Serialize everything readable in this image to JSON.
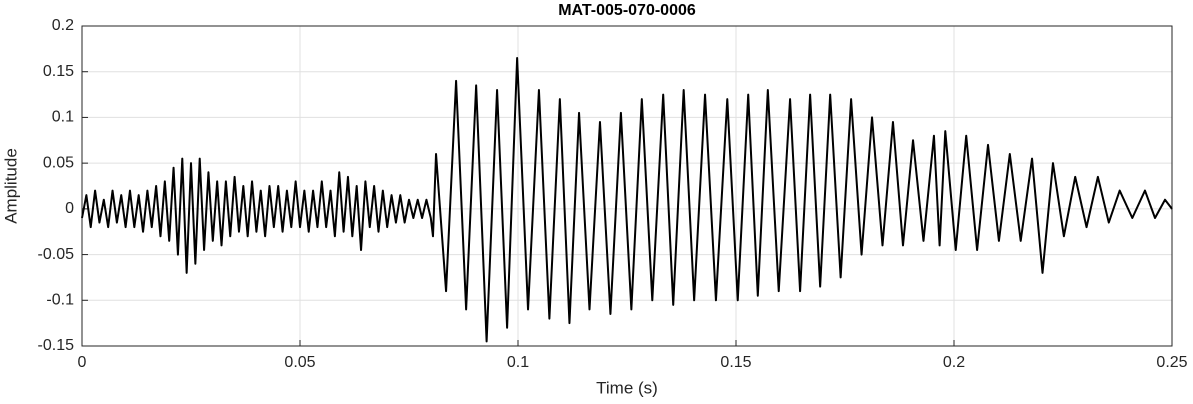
{
  "chart_data": {
    "type": "line",
    "title": "MAT-005-070-0006",
    "x_label": "Time (s)",
    "y_label": "Amplitude",
    "x": [
      0,
      0.001,
      0.002,
      0.003,
      0.004,
      0.005,
      0.006,
      0.007,
      0.008,
      0.009,
      0.01,
      0.011,
      0.012,
      0.013,
      0.014,
      0.015,
      0.016,
      0.017,
      0.018,
      0.019,
      0.02,
      0.021,
      0.022,
      0.023,
      0.024,
      0.025,
      0.026,
      0.027,
      0.028,
      0.029,
      0.03,
      0.031,
      0.032,
      0.033,
      0.034,
      0.035,
      0.036,
      0.037,
      0.038,
      0.039,
      0.04,
      0.041,
      0.042,
      0.043,
      0.044,
      0.045,
      0.046,
      0.047,
      0.048,
      0.049,
      0.05,
      0.051,
      0.052,
      0.053,
      0.054,
      0.055,
      0.056,
      0.057,
      0.058,
      0.059,
      0.06,
      0.061,
      0.062,
      0.063,
      0.064,
      0.065,
      0.066,
      0.067,
      0.068,
      0.069,
      0.07,
      0.071,
      0.072,
      0.073,
      0.074,
      0.075,
      0.076,
      0.077,
      0.078,
      0.079,
      0.08,
      0.0805,
      0.0812,
      0.0835,
      0.0858,
      0.0881,
      0.0904,
      0.0928,
      0.0952,
      0.0975,
      0.0998,
      0.1023,
      0.1048,
      0.1072,
      0.1096,
      0.1118,
      0.114,
      0.1164,
      0.1188,
      0.1212,
      0.1236,
      0.126,
      0.1284,
      0.1308,
      0.1333,
      0.1356,
      0.138,
      0.1404,
      0.1429,
      0.1454,
      0.148,
      0.1504,
      0.1528,
      0.155,
      0.1573,
      0.1598,
      0.1624,
      0.1647,
      0.167,
      0.1693,
      0.1716,
      0.174,
      0.1764,
      0.1788,
      0.1812,
      0.1836,
      0.186,
      0.1883,
      0.1906,
      0.193,
      0.1954,
      0.1967,
      0.198,
      0.2004,
      0.2028,
      0.2053,
      0.2078,
      0.2103,
      0.2128,
      0.2153,
      0.2179,
      0.2203,
      0.2227,
      0.2252,
      0.2278,
      0.2304,
      0.233,
      0.2355,
      0.238,
      0.2409,
      0.2438,
      0.2461,
      0.2484,
      0.25
    ],
    "series": [
      {
        "color": "#000000",
        "values": [
          -0.01,
          0.015,
          -0.02,
          0.02,
          -0.015,
          0.01,
          -0.02,
          0.02,
          -0.015,
          0.015,
          -0.02,
          0.02,
          -0.02,
          0.015,
          -0.025,
          0.02,
          -0.02,
          0.025,
          -0.03,
          0.03,
          -0.035,
          0.045,
          -0.05,
          0.055,
          -0.07,
          0.05,
          -0.06,
          0.055,
          -0.045,
          0.04,
          -0.035,
          0.03,
          -0.04,
          0.03,
          -0.03,
          0.035,
          -0.025,
          0.025,
          -0.03,
          0.03,
          -0.025,
          0.02,
          -0.03,
          0.025,
          -0.02,
          0.025,
          -0.025,
          0.02,
          -0.02,
          0.03,
          -0.02,
          0.02,
          -0.025,
          0.02,
          -0.02,
          0.03,
          -0.02,
          0.02,
          -0.03,
          0.04,
          -0.025,
          0.035,
          -0.03,
          0.025,
          -0.045,
          0.03,
          -0.02,
          0.025,
          -0.025,
          0.02,
          -0.02,
          0.015,
          -0.015,
          0.015,
          -0.015,
          0.01,
          -0.01,
          0.01,
          -0.01,
          0.01,
          -0.01,
          -0.03,
          0.06,
          -0.09,
          0.14,
          -0.11,
          0.135,
          -0.145,
          0.13,
          -0.13,
          0.165,
          -0.11,
          0.13,
          -0.12,
          0.12,
          -0.125,
          0.105,
          -0.11,
          0.095,
          -0.115,
          0.105,
          -0.11,
          0.12,
          -0.1,
          0.125,
          -0.105,
          0.13,
          -0.1,
          0.125,
          -0.1,
          0.12,
          -0.1,
          0.125,
          -0.095,
          0.13,
          -0.09,
          0.12,
          -0.09,
          0.125,
          -0.085,
          0.125,
          -0.075,
          0.12,
          -0.05,
          0.1,
          -0.04,
          0.095,
          -0.04,
          0.075,
          -0.035,
          0.08,
          -0.04,
          0.085,
          -0.045,
          0.08,
          -0.045,
          0.07,
          -0.035,
          0.06,
          -0.035,
          0.055,
          -0.07,
          0.05,
          -0.03,
          0.035,
          -0.02,
          0.035,
          -0.015,
          0.02,
          -0.01,
          0.02,
          -0.01,
          0.01,
          0
        ]
      }
    ],
    "xlim": [
      0,
      0.25
    ],
    "xticks": [
      0,
      0.05,
      0.1,
      0.15,
      0.2,
      0.25
    ],
    "ylim": [
      -0.15,
      0.2
    ],
    "yticks": [
      -0.15,
      -0.1,
      -0.05,
      0,
      0.05,
      0.1,
      0.15,
      0.2
    ],
    "grid": true
  }
}
